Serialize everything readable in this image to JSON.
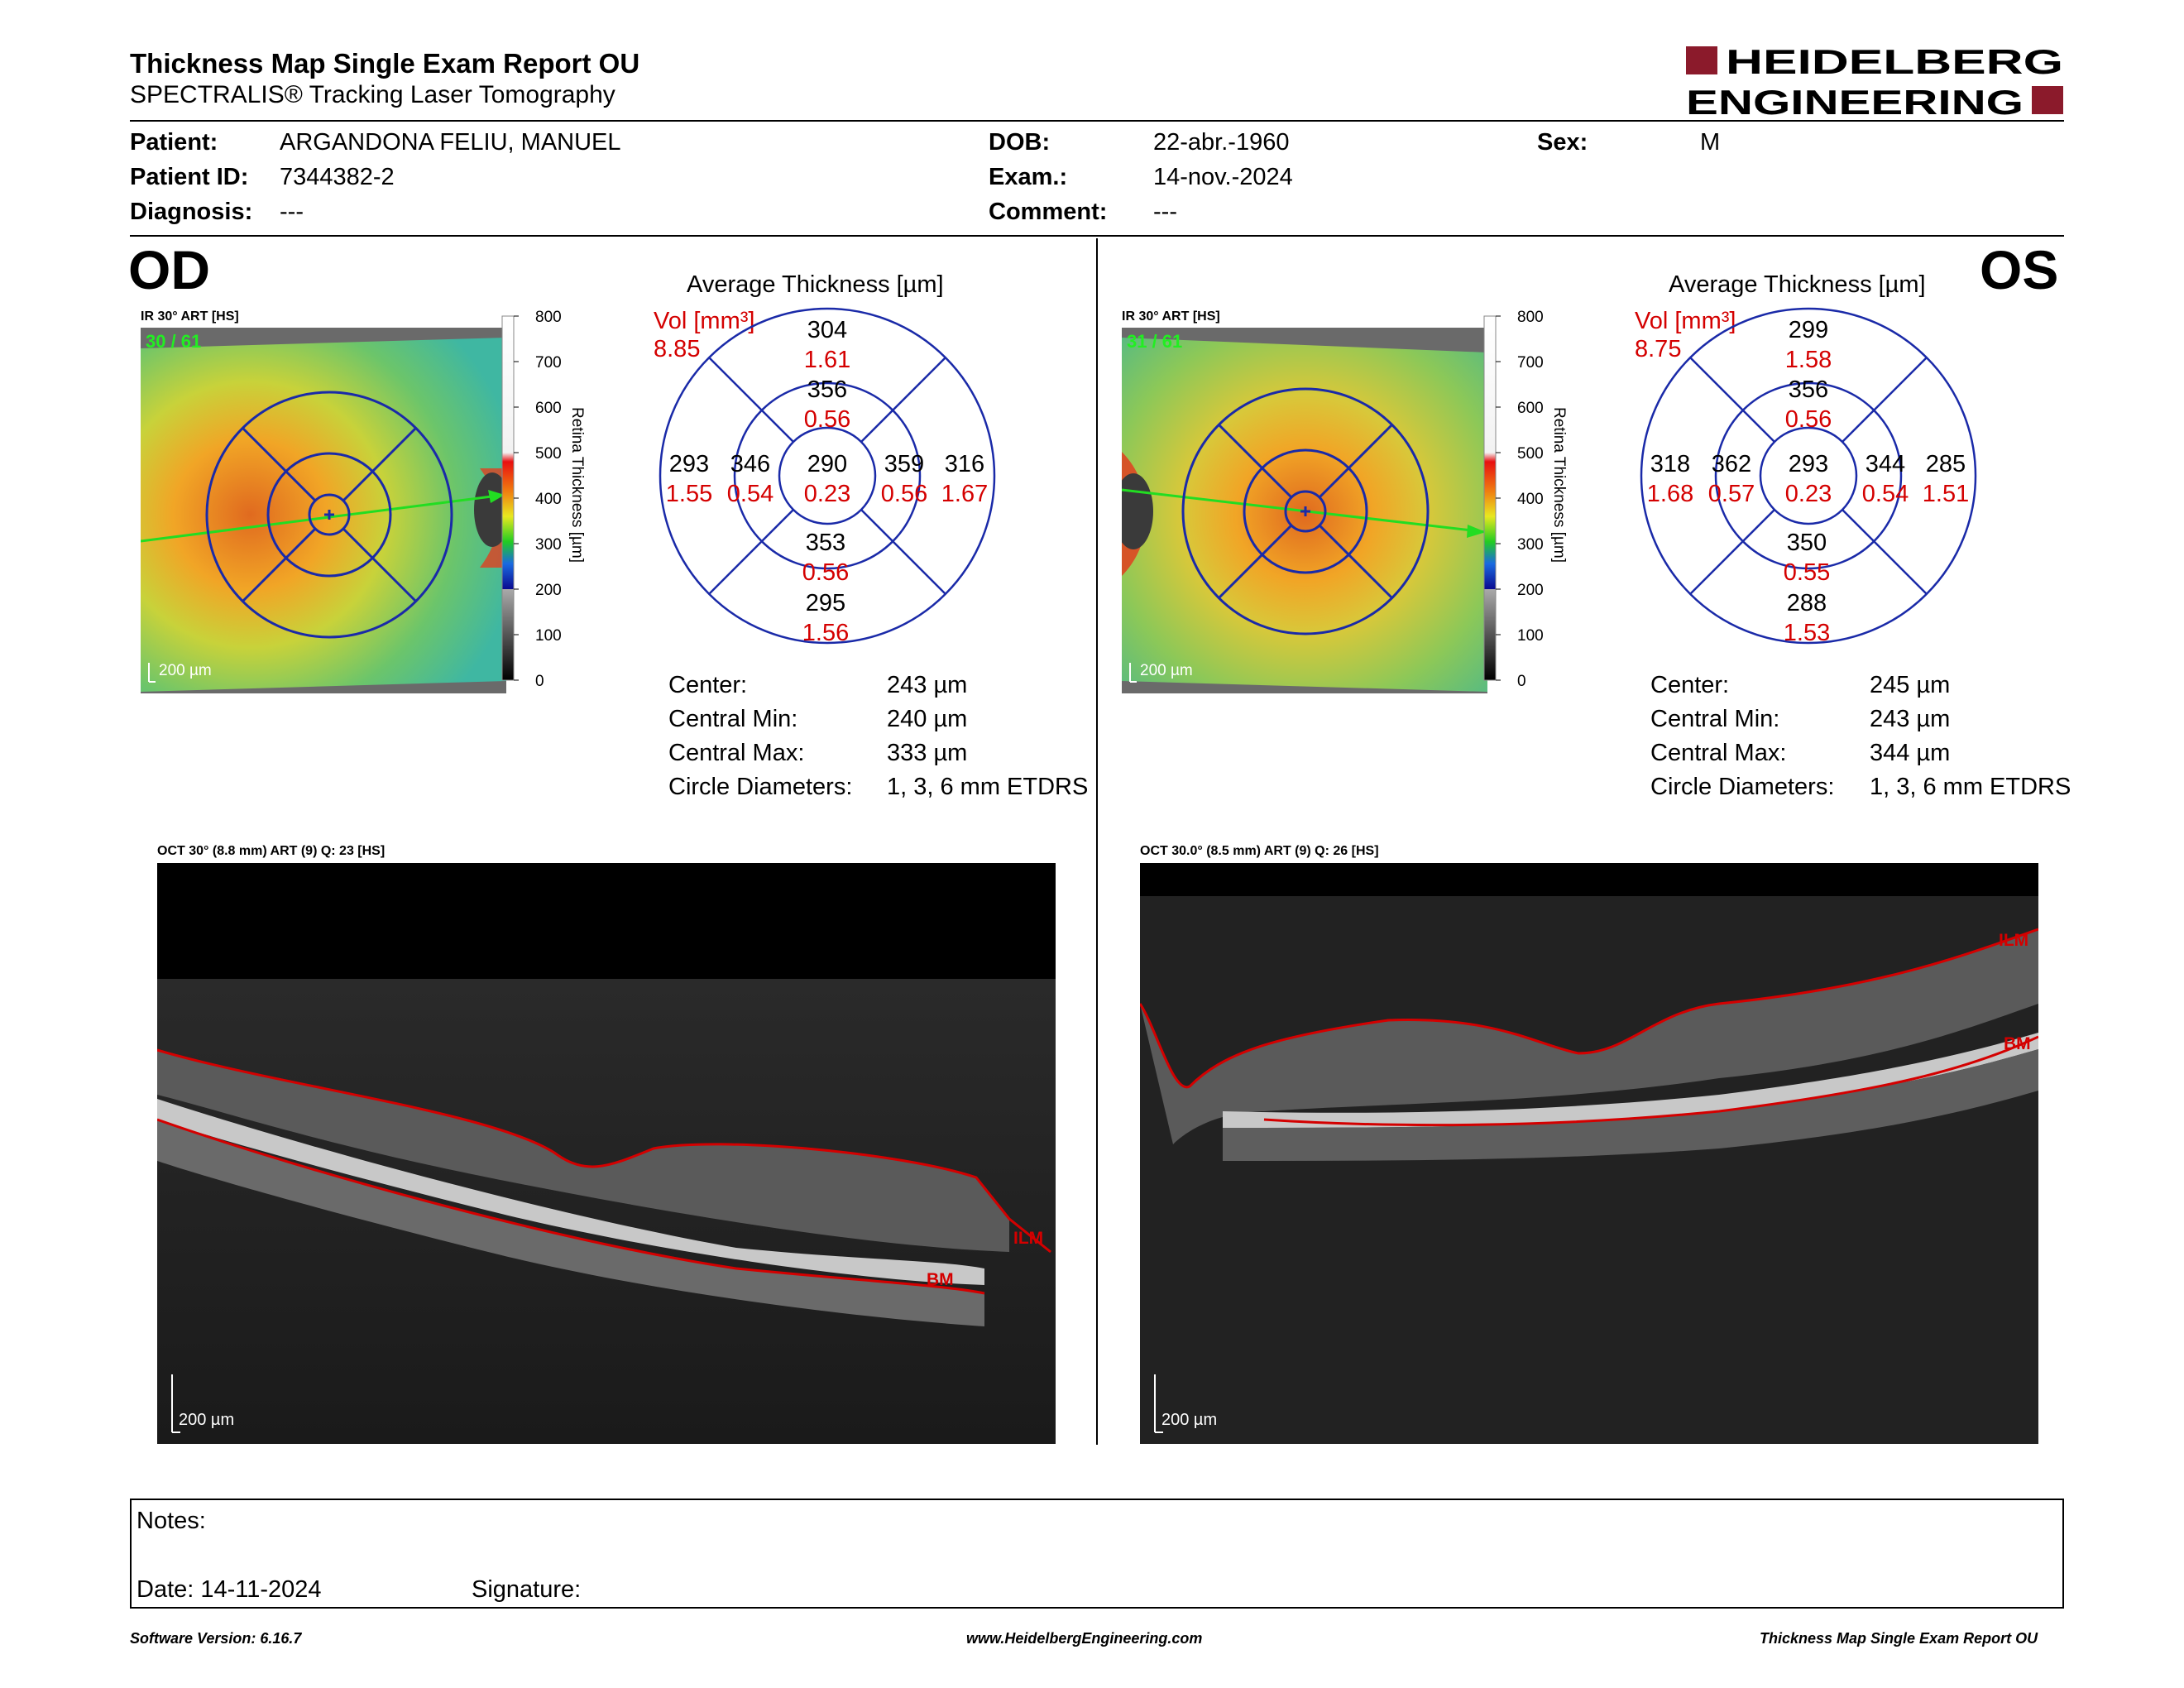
{
  "header": {
    "title": "Thickness Map Single Exam Report OU",
    "subtitle": "SPECTRALIS® Tracking Laser Tomography",
    "logo_line1": "HEIDELBERG",
    "logo_line2": "ENGINEERING"
  },
  "patient": {
    "patient_label": "Patient:",
    "patient_value": "ARGANDONA FELIU, MANUEL",
    "id_label": "Patient ID:",
    "id_value": "7344382-2",
    "diagnosis_label": "Diagnosis:",
    "diagnosis_value": "---",
    "dob_label": "DOB:",
    "dob_value": "22-abr.-1960",
    "exam_label": "Exam.:",
    "exam_value": "14-nov.-2024",
    "comment_label": "Comment:",
    "comment_value": "---",
    "sex_label": "Sex:",
    "sex_value": "M"
  },
  "scale": {
    "ticks": [
      "800",
      "700",
      "600",
      "500",
      "400",
      "300",
      "200",
      "100",
      "0"
    ],
    "axis_label": "Retina  Thickness [µm]"
  },
  "od": {
    "eye_label": "OD",
    "ir_label": "IR 30° ART [HS]",
    "frame_counter": "30 / 61",
    "scale_bar": "200 µm",
    "chart_title": "Average Thickness [µm]",
    "vol_label": "Vol [mm³]",
    "vol_value": "8.85",
    "sectors": {
      "center": {
        "thickness": "290",
        "volume": "0.23"
      },
      "inner_superior": {
        "thickness": "356",
        "volume": "0.56"
      },
      "inner_inferior": {
        "thickness": "353",
        "volume": "0.56"
      },
      "inner_left": {
        "thickness": "346",
        "volume": "0.54"
      },
      "inner_right": {
        "thickness": "359",
        "volume": "0.56"
      },
      "outer_superior": {
        "thickness": "304",
        "volume": "1.61"
      },
      "outer_inferior": {
        "thickness": "295",
        "volume": "1.56"
      },
      "outer_left": {
        "thickness": "293",
        "volume": "1.55"
      },
      "outer_right": {
        "thickness": "316",
        "volume": "1.67"
      }
    },
    "stats": [
      {
        "label": "Center:",
        "value": "243 µm"
      },
      {
        "label": "Central Min:",
        "value": "240 µm"
      },
      {
        "label": "Central Max:",
        "value": "333 µm"
      },
      {
        "label": "Circle Diameters:",
        "value": "1, 3, 6 mm ETDRS"
      }
    ],
    "oct_label": "OCT 30° (8.8 mm) ART (9) Q: 23 [HS]",
    "oct_scale_bar": "200 µm",
    "ilm_label": "ILM",
    "bm_label": "BM"
  },
  "os": {
    "eye_label": "OS",
    "ir_label": "IR 30° ART [HS]",
    "frame_counter": "31 / 61",
    "scale_bar": "200 µm",
    "chart_title": "Average Thickness [µm]",
    "vol_label": "Vol [mm³]",
    "vol_value": "8.75",
    "sectors": {
      "center": {
        "thickness": "293",
        "volume": "0.23"
      },
      "inner_superior": {
        "thickness": "356",
        "volume": "0.56"
      },
      "inner_inferior": {
        "thickness": "350",
        "volume": "0.55"
      },
      "inner_left": {
        "thickness": "362",
        "volume": "0.57"
      },
      "inner_right": {
        "thickness": "344",
        "volume": "0.54"
      },
      "outer_superior": {
        "thickness": "299",
        "volume": "1.58"
      },
      "outer_inferior": {
        "thickness": "288",
        "volume": "1.53"
      },
      "outer_left": {
        "thickness": "318",
        "volume": "1.68"
      },
      "outer_right": {
        "thickness": "285",
        "volume": "1.51"
      }
    },
    "stats": [
      {
        "label": "Center:",
        "value": "245 µm"
      },
      {
        "label": "Central Min:",
        "value": "243 µm"
      },
      {
        "label": "Central Max:",
        "value": "344 µm"
      },
      {
        "label": "Circle Diameters:",
        "value": "1, 3, 6 mm ETDRS"
      }
    ],
    "oct_label": "OCT 30.0° (8.5 mm) ART (9) Q: 26 [HS]",
    "oct_scale_bar": "200 µm",
    "ilm_label": "ILM",
    "bm_label": "BM"
  },
  "notes": {
    "notes_label": "Notes:",
    "date_label": "Date: 14-11-2024",
    "signature_label": "Signature:"
  },
  "footer": {
    "software": "Software Version: 6.16.7",
    "website": "www.HeidelbergEngineering.com",
    "report_name": "Thickness Map Single Exam Report OU"
  },
  "colors": {
    "accent_red": "#d40000",
    "logo_red": "#8b1a2b",
    "circle_blue": "#1a2aa8",
    "scan_line_green": "#22dd22"
  }
}
